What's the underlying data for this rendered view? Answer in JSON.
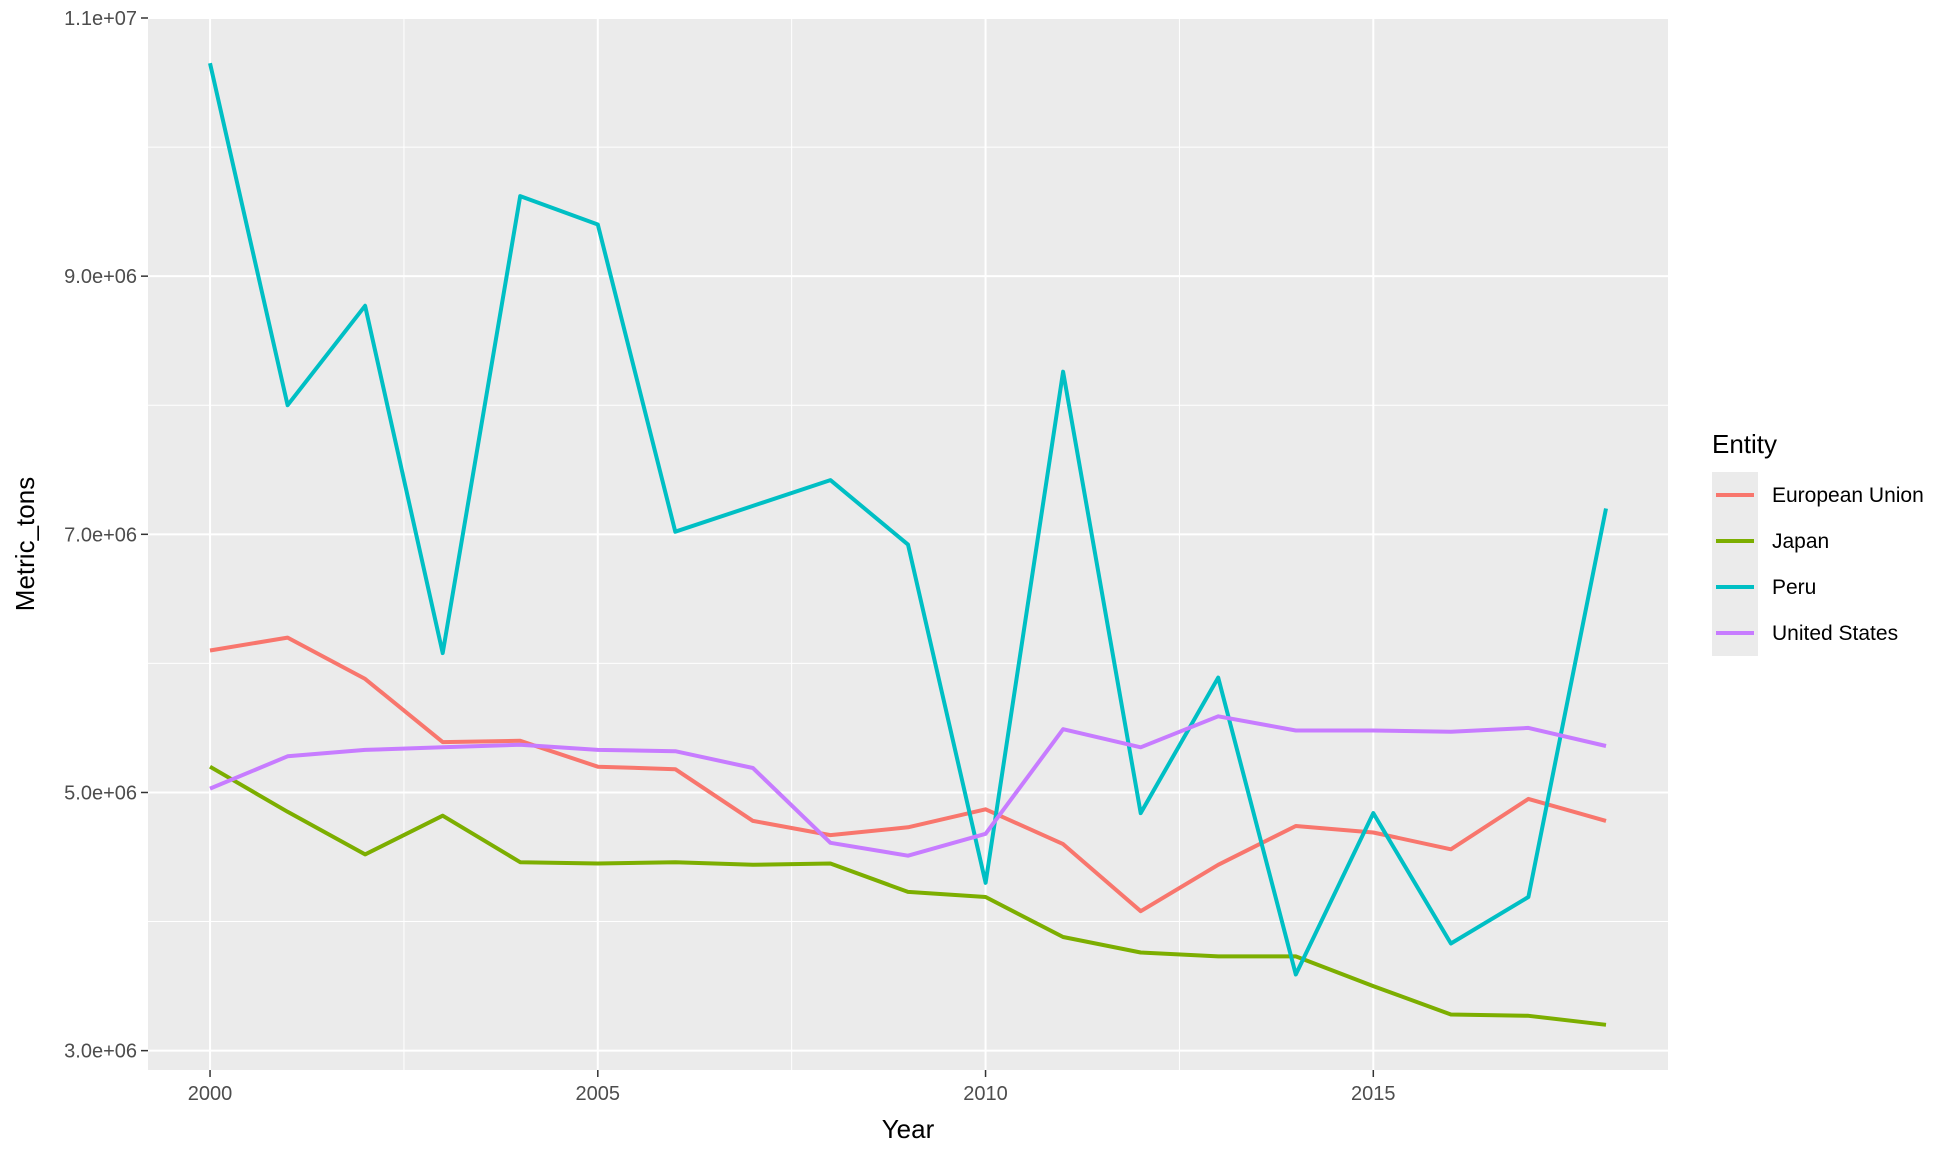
{
  "chart_data": {
    "type": "line",
    "title": "",
    "xlabel": "Year",
    "ylabel": "Metric_tons",
    "xlim": [
      1999.2,
      2018.8
    ],
    "ylim": [
      2850000.0,
      11000000.0
    ],
    "x_ticks": [
      2000,
      2005,
      2010,
      2015
    ],
    "x_tick_labels": [
      "2000",
      "2005",
      "2010",
      "2015"
    ],
    "y_ticks": [
      3000000,
      5000000,
      7000000,
      9000000,
      11000000
    ],
    "y_tick_labels": [
      "3.0e+06",
      "5.0e+06",
      "7.0e+06",
      "9.0e+06",
      "1.1e+07"
    ],
    "grid": true,
    "legend": {
      "title": "Entity",
      "placement": "right"
    },
    "x": [
      2000,
      2001,
      2002,
      2003,
      2004,
      2005,
      2006,
      2007,
      2008,
      2009,
      2010,
      2011,
      2012,
      2013,
      2014,
      2015,
      2016,
      2017,
      2018
    ],
    "series": [
      {
        "name": "European Union",
        "color": "#F8766D",
        "values": [
          6100000,
          6200000,
          5880000,
          5390000,
          5400000,
          5200000,
          5180000,
          4780000,
          4670000,
          4730000,
          4870000,
          4600000,
          4080000,
          4440000,
          4740000,
          4690000,
          4560000,
          4950000,
          4780000
        ]
      },
      {
        "name": "Japan",
        "color": "#7CAE00",
        "values": [
          5200000,
          4850000,
          4520000,
          4820000,
          4460000,
          4450000,
          4460000,
          4440000,
          4450000,
          4230000,
          4190000,
          3880000,
          3760000,
          3730000,
          3730000,
          3500000,
          3280000,
          3270000,
          3200000
        ]
      },
      {
        "name": "Peru",
        "color": "#00BFC4",
        "values": [
          10650000,
          8000000,
          8770000,
          6080000,
          9620000,
          9400000,
          7020000,
          7220000,
          7420000,
          6920000,
          4300000,
          8260000,
          4840000,
          5890000,
          3590000,
          4840000,
          3830000,
          4190000,
          7200000
        ]
      },
      {
        "name": "United States",
        "color": "#C77CFF",
        "values": [
          5030000,
          5280000,
          5330000,
          5350000,
          5370000,
          5330000,
          5320000,
          5190000,
          4610000,
          4510000,
          4680000,
          5490000,
          5350000,
          5590000,
          5480000,
          5480000,
          5470000,
          5500000,
          5360000
        ]
      }
    ]
  }
}
